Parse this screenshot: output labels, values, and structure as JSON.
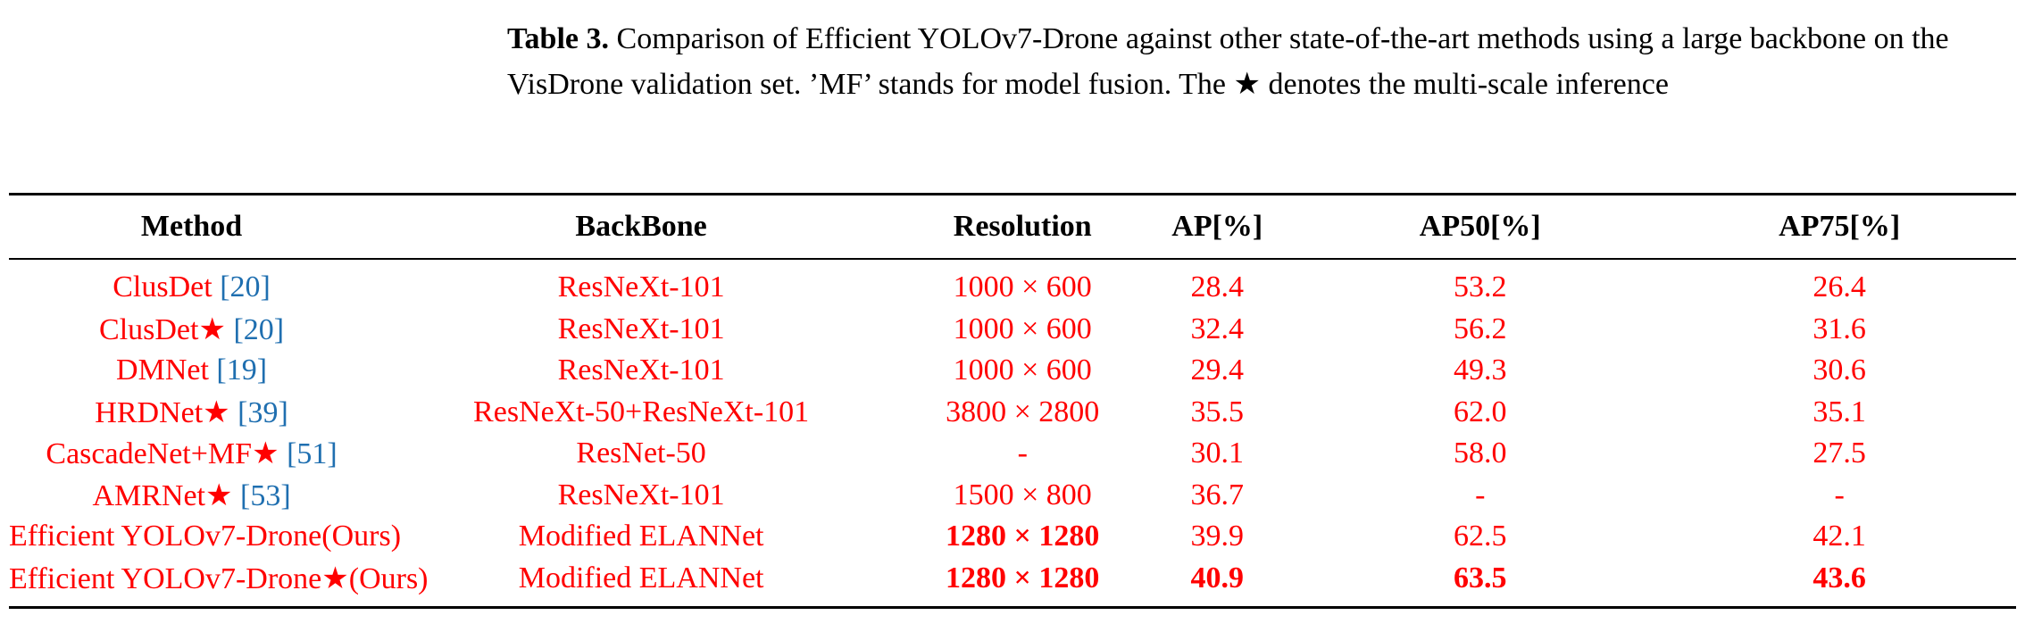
{
  "caption": {
    "label": "Table 3.",
    "text": "Comparison of Efficient YOLOv7-Drone against other state-of-the-art methods using a large backbone on the VisDrone validation set. ’MF’ stands for model fusion. The ★ denotes the multi-scale inference"
  },
  "table": {
    "headers": [
      "Method",
      "BackBone",
      "Resolution",
      "AP[%]",
      "AP50[%]",
      "AP75[%]"
    ],
    "rows": [
      {
        "method": "ClusDet",
        "ref": "[20]",
        "backbone": "ResNeXt-101",
        "resolution": "1000 × 600",
        "ap": "28.4",
        "ap50": "53.2",
        "ap75": "26.4"
      },
      {
        "method": "ClusDet★",
        "ref": "[20]",
        "backbone": "ResNeXt-101",
        "resolution": "1000 × 600",
        "ap": "32.4",
        "ap50": "56.2",
        "ap75": "31.6"
      },
      {
        "method": "DMNet",
        "ref": "[19]",
        "backbone": "ResNeXt-101",
        "resolution": "1000 × 600",
        "ap": "29.4",
        "ap50": "49.3",
        "ap75": "30.6"
      },
      {
        "method": "HRDNet★",
        "ref": "[39]",
        "backbone": "ResNeXt-50+ResNeXt-101",
        "resolution": "3800 × 2800",
        "ap": "35.5",
        "ap50": "62.0",
        "ap75": "35.1"
      },
      {
        "method": "CascadeNet+MF★",
        "ref": "[51]",
        "backbone": "ResNet-50",
        "resolution": "-",
        "ap": "30.1",
        "ap50": "58.0",
        "ap75": "27.5"
      },
      {
        "method": "AMRNet★",
        "ref": "[53]",
        "backbone": "ResNeXt-101",
        "resolution": "1500 × 800",
        "ap": "36.7",
        "ap50": "-",
        "ap75": "-"
      },
      {
        "method": "Efficient YOLOv7-Drone(Ours)",
        "ref": "",
        "backbone": "Modified ELANNet",
        "resolution": "1280 × 1280",
        "ap": "39.9",
        "ap50": "62.5",
        "ap75": "42.1"
      },
      {
        "method": "Efficient YOLOv7-Drone★(Ours)",
        "ref": "",
        "backbone": "Modified ELANNet",
        "resolution": "1280 × 1280",
        "ap": "40.9",
        "ap50": "63.5",
        "ap75": "43.6"
      }
    ]
  },
  "colors": {
    "text": "#000000",
    "highlight": "#ff0000",
    "citation": "#1f6fb0"
  }
}
